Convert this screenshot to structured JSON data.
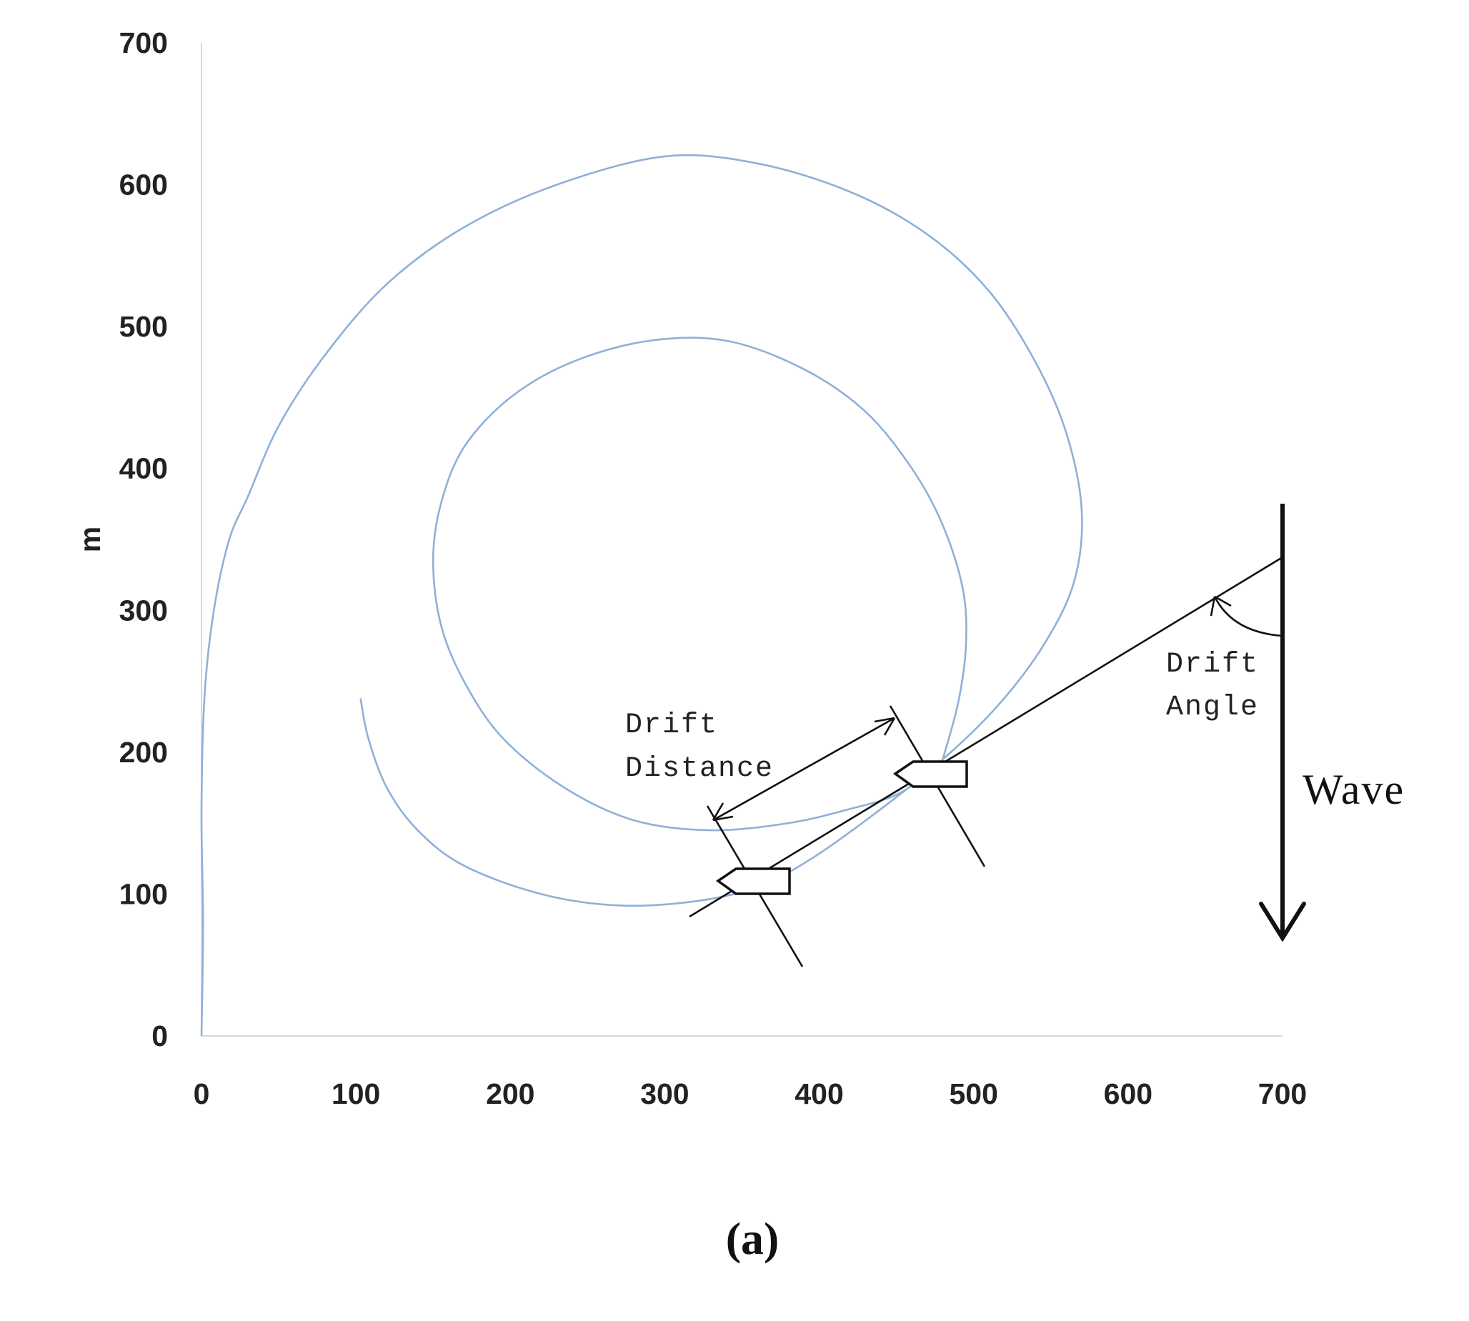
{
  "chart_data": {
    "type": "line",
    "ylabel": "m",
    "xlabel": "",
    "xlim": [
      0,
      700
    ],
    "ylim": [
      0,
      700
    ],
    "xticks": [
      "0",
      "100",
      "200",
      "300",
      "400",
      "500",
      "600",
      "700"
    ],
    "yticks": [
      "0",
      "100",
      "200",
      "300",
      "400",
      "500",
      "600",
      "700"
    ],
    "series": [
      {
        "color": "#8fb0d8",
        "points": [
          [
            0,
            0
          ],
          [
            1,
            80
          ],
          [
            0,
            160
          ],
          [
            2,
            240
          ],
          [
            8,
            300
          ],
          [
            18,
            350
          ],
          [
            30,
            380
          ],
          [
            50,
            430
          ],
          [
            80,
            480
          ],
          [
            120,
            530
          ],
          [
            170,
            570
          ],
          [
            230,
            600
          ],
          [
            300,
            620
          ],
          [
            360,
            615
          ],
          [
            420,
            595
          ],
          [
            470,
            565
          ],
          [
            510,
            525
          ],
          [
            540,
            475
          ],
          [
            560,
            425
          ],
          [
            570,
            370
          ],
          [
            565,
            320
          ],
          [
            545,
            275
          ],
          [
            515,
            232
          ],
          [
            480,
            195
          ],
          [
            440,
            160
          ],
          [
            395,
            125
          ],
          [
            360,
            105
          ],
          [
            320,
            95
          ],
          [
            270,
            92
          ],
          [
            220,
            100
          ],
          [
            170,
            120
          ],
          [
            140,
            145
          ],
          [
            120,
            175
          ],
          [
            108,
            210
          ],
          [
            103,
            238
          ]
        ]
      },
      {
        "color": "#8fb0d8",
        "points": [
          [
            480,
            195
          ],
          [
            490,
            235
          ],
          [
            495,
            275
          ],
          [
            493,
            315
          ],
          [
            480,
            360
          ],
          [
            460,
            400
          ],
          [
            430,
            440
          ],
          [
            390,
            470
          ],
          [
            340,
            490
          ],
          [
            290,
            490
          ],
          [
            240,
            475
          ],
          [
            200,
            450
          ],
          [
            170,
            415
          ],
          [
            155,
            375
          ],
          [
            150,
            335
          ],
          [
            155,
            290
          ],
          [
            170,
            250
          ],
          [
            195,
            210
          ],
          [
            235,
            175
          ],
          [
            280,
            152
          ],
          [
            330,
            145
          ],
          [
            380,
            150
          ],
          [
            420,
            160
          ],
          [
            450,
            170
          ],
          [
            470,
            185
          ],
          [
            480,
            195
          ]
        ]
      }
    ],
    "annotations": {
      "drift_distance_line1": "Drift",
      "drift_distance_line2": "Distance",
      "drift_angle_line1": "Drift",
      "drift_angle_line2": "Angle",
      "wave_label": "Wave",
      "panel_label": "(a)"
    }
  }
}
